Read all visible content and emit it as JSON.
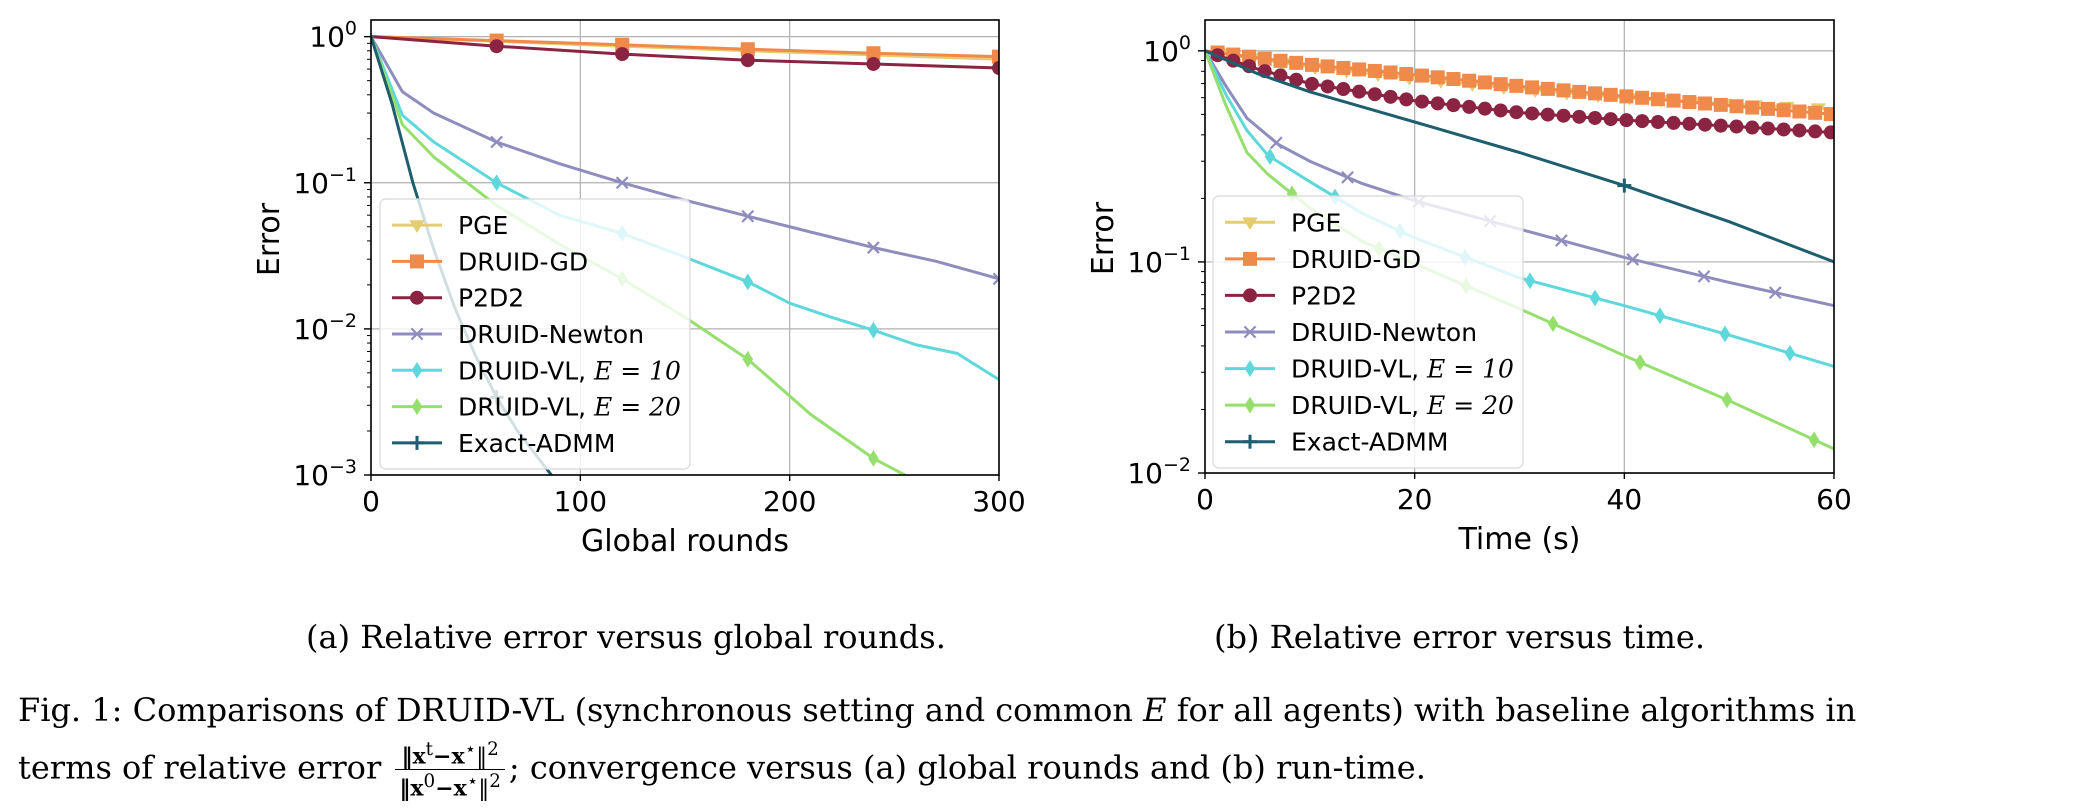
{
  "chart_data": [
    {
      "type": "line",
      "xlabel": "Global rounds",
      "ylabel": "Error",
      "xlim": [
        0,
        300
      ],
      "ylim": [
        0.001,
        1.3
      ],
      "yscale": "log",
      "xticks": [
        0,
        100,
        200,
        300
      ],
      "xtick_labels": [
        "0",
        "100",
        "200",
        "300"
      ],
      "yticks": [
        1,
        0.1,
        0.01,
        0.001
      ],
      "ytick_labels": [
        "10",
        "10",
        "10",
        "10"
      ],
      "ytick_exponents": [
        "0",
        "−1",
        "−2",
        "−3"
      ],
      "grid": true,
      "legend_position": "lower-left",
      "caption": "(a) Relative error versus global rounds.",
      "series": [
        {
          "name": "PGE",
          "label": "PGE",
          "color": "#e4cd6e",
          "marker": "tri_down",
          "x": [
            0,
            60,
            120,
            180,
            240,
            300
          ],
          "y": [
            1,
            0.93,
            0.86,
            0.8,
            0.75,
            0.7
          ],
          "marker_x": [
            60,
            120,
            180,
            240,
            300
          ]
        },
        {
          "name": "DRUID-GD",
          "label": "DRUID-GD",
          "color": "#f08a4b",
          "marker": "square",
          "x": [
            0,
            60,
            120,
            180,
            240,
            300
          ],
          "y": [
            1,
            0.94,
            0.88,
            0.82,
            0.77,
            0.73
          ],
          "marker_x": [
            60,
            120,
            180,
            240,
            300
          ]
        },
        {
          "name": "P2D2",
          "label": "P2D2",
          "color": "#8b2343",
          "marker": "circle",
          "x": [
            0,
            60,
            120,
            180,
            240,
            300
          ],
          "y": [
            1,
            0.86,
            0.76,
            0.69,
            0.65,
            0.61
          ],
          "marker_x": [
            60,
            120,
            180,
            240,
            300
          ]
        },
        {
          "name": "DRUID-Newton",
          "label": "DRUID-Newton",
          "color": "#8e8dbd",
          "marker": "x",
          "x": [
            0,
            15,
            30,
            60,
            90,
            120,
            150,
            180,
            210,
            240,
            270,
            300
          ],
          "y": [
            1,
            0.42,
            0.3,
            0.19,
            0.135,
            0.1,
            0.076,
            0.059,
            0.046,
            0.036,
            0.029,
            0.022
          ],
          "marker_x": [
            60,
            120,
            180,
            240,
            300
          ]
        },
        {
          "name": "DRUID-VL, E = 10",
          "label": "DRUID-VL, ",
          "label_math": "E = 10",
          "color": "#5fd8dc",
          "marker": "diamond",
          "x": [
            0,
            15,
            30,
            60,
            90,
            120,
            150,
            180,
            200,
            220,
            240,
            260,
            280,
            300
          ],
          "y": [
            1,
            0.29,
            0.19,
            0.1,
            0.06,
            0.045,
            0.031,
            0.021,
            0.015,
            0.012,
            0.0098,
            0.0078,
            0.0068,
            0.0045
          ],
          "marker_x": [
            60,
            120,
            180,
            240
          ]
        },
        {
          "name": "DRUID-VL, E = 20",
          "label": "DRUID-VL, ",
          "label_math": "E = 20",
          "color": "#95e06c",
          "marker": "diamond",
          "x": [
            0,
            15,
            30,
            60,
            90,
            120,
            150,
            180,
            210,
            240,
            255
          ],
          "y": [
            1,
            0.25,
            0.15,
            0.07,
            0.038,
            0.022,
            0.012,
            0.0062,
            0.0026,
            0.0013,
            0.001
          ],
          "marker_x": [
            120,
            180,
            240
          ]
        },
        {
          "name": "Exact-ADMM",
          "label": "Exact-ADMM",
          "color": "#1e5e6e",
          "marker": "plus",
          "x": [
            0,
            10,
            20,
            30,
            40,
            50,
            60,
            70,
            80,
            90
          ],
          "y": [
            1,
            0.35,
            0.1,
            0.035,
            0.014,
            0.0065,
            0.0034,
            0.002,
            0.0013,
            0.00085
          ],
          "marker_x": [
            60
          ]
        }
      ]
    },
    {
      "type": "line",
      "xlabel": "Time (s)",
      "ylabel": "Error",
      "xlim": [
        0,
        60
      ],
      "ylim": [
        0.01,
        1.4
      ],
      "yscale": "log",
      "xticks": [
        0,
        20,
        40,
        60
      ],
      "xtick_labels": [
        "0",
        "20",
        "40",
        "60"
      ],
      "yticks": [
        1,
        0.1,
        0.01
      ],
      "ytick_labels": [
        "10",
        "10",
        "10"
      ],
      "ytick_exponents": [
        "0",
        "−1",
        "−2"
      ],
      "grid": true,
      "legend_position": "lower-left",
      "caption": "(b) Relative error versus time.",
      "series": [
        {
          "name": "PGE",
          "label": "PGE",
          "color": "#e4cd6e",
          "marker": "tri_down",
          "x": [
            0,
            10,
            20,
            30,
            40,
            50,
            60
          ],
          "y": [
            1,
            0.84,
            0.74,
            0.66,
            0.6,
            0.56,
            0.53
          ],
          "marker_x": [
            1.5,
            4.5,
            7.5,
            10.5,
            13.5,
            16.5,
            19.5,
            22.5,
            25.5,
            28.5,
            31.5,
            34.5,
            37.5,
            40.5,
            43.5,
            46.5,
            49.5,
            52.5,
            55.5,
            58.5
          ]
        },
        {
          "name": "DRUID-GD",
          "label": "DRUID-GD",
          "color": "#f08a4b",
          "marker": "square",
          "x": [
            0,
            10,
            20,
            30,
            40,
            50,
            60
          ],
          "y": [
            1,
            0.86,
            0.77,
            0.68,
            0.61,
            0.55,
            0.5
          ],
          "marker_x": [
            1.2,
            2.7,
            4.2,
            5.7,
            7.2,
            8.7,
            10.2,
            11.7,
            13.2,
            14.7,
            16.2,
            17.7,
            19.2,
            20.7,
            22.2,
            23.7,
            25.2,
            26.7,
            28.2,
            29.7,
            31.2,
            32.7,
            34.2,
            35.7,
            37.2,
            38.7,
            40.2,
            41.7,
            43.2,
            44.7,
            46.2,
            47.7,
            49.2,
            50.7,
            52.2,
            53.7,
            55.2,
            56.7,
            58.2,
            59.7
          ]
        },
        {
          "name": "P2D2",
          "label": "P2D2",
          "color": "#8b2343",
          "marker": "circle",
          "x": [
            0,
            5,
            10,
            20,
            30,
            40,
            50,
            60
          ],
          "y": [
            1,
            0.82,
            0.7,
            0.58,
            0.51,
            0.47,
            0.44,
            0.41
          ],
          "marker_x": [
            1.2,
            2.7,
            4.2,
            5.7,
            7.2,
            8.7,
            10.2,
            11.7,
            13.2,
            14.7,
            16.2,
            17.7,
            19.2,
            20.7,
            22.2,
            23.7,
            25.2,
            26.7,
            28.2,
            29.7,
            31.2,
            32.7,
            34.2,
            35.7,
            37.2,
            38.7,
            40.2,
            41.7,
            43.2,
            44.7,
            46.2,
            47.7,
            49.2,
            50.7,
            52.2,
            53.7,
            55.2,
            56.7,
            58.2,
            59.7
          ]
        },
        {
          "name": "DRUID-Newton",
          "label": "DRUID-Newton",
          "color": "#8e8dbd",
          "marker": "x",
          "x": [
            0,
            2,
            4,
            7,
            10,
            15,
            20,
            30,
            40,
            50,
            60
          ],
          "y": [
            1,
            0.68,
            0.48,
            0.36,
            0.3,
            0.235,
            0.195,
            0.143,
            0.105,
            0.08,
            0.062
          ],
          "marker_x": [
            6.8,
            13.6,
            20.4,
            27.2,
            34,
            40.8,
            47.6,
            54.4
          ]
        },
        {
          "name": "DRUID-VL, E = 10",
          "label": "DRUID-VL, ",
          "label_math": "E = 10",
          "color": "#5fd8dc",
          "marker": "diamond",
          "x": [
            0,
            2,
            4,
            6,
            10,
            15,
            20,
            30,
            40,
            50,
            60
          ],
          "y": [
            1,
            0.62,
            0.42,
            0.32,
            0.24,
            0.17,
            0.13,
            0.084,
            0.062,
            0.045,
            0.032
          ],
          "marker_x": [
            6.2,
            12.4,
            18.6,
            24.8,
            31,
            37.2,
            43.4,
            49.6,
            55.8
          ]
        },
        {
          "name": "DRUID-VL, E = 20",
          "label": "DRUID-VL, ",
          "label_math": "E = 20",
          "color": "#95e06c",
          "marker": "diamond",
          "x": [
            0,
            2,
            4,
            6,
            10,
            15,
            20,
            30,
            40,
            50,
            60
          ],
          "y": [
            1,
            0.55,
            0.33,
            0.26,
            0.18,
            0.125,
            0.098,
            0.06,
            0.036,
            0.022,
            0.013
          ],
          "marker_x": [
            8.3,
            16.6,
            24.9,
            33.2,
            41.5,
            49.8,
            58.1
          ]
        },
        {
          "name": "Exact-ADMM",
          "label": "Exact-ADMM",
          "color": "#1e5e6e",
          "marker": "plus",
          "x": [
            0,
            5,
            10,
            20,
            30,
            40,
            50,
            60
          ],
          "y": [
            1,
            0.78,
            0.64,
            0.46,
            0.33,
            0.23,
            0.155,
            0.1
          ],
          "marker_x": [
            40
          ]
        }
      ]
    }
  ],
  "figure_caption": {
    "part1": "Fig. 1: Comparisons of DRUID-VL (synchronous setting and common ",
    "math_E": "E",
    "part2": " for all agents) with baseline algorithms in",
    "part3": "terms of relative error ",
    "frac_num": "‖x",
    "frac_num_sup": "t",
    "frac_num_rest": "−x",
    "frac_num_star": "⋆",
    "frac_num_end": "‖",
    "frac_num_pow": "2",
    "frac_den": "‖x",
    "frac_den_sup": "0",
    "frac_den_rest": "−x",
    "frac_den_star": "⋆",
    "frac_den_end": "‖",
    "frac_den_pow": "2",
    "part4": "; convergence versus (a) global rounds and (b) run-time."
  }
}
